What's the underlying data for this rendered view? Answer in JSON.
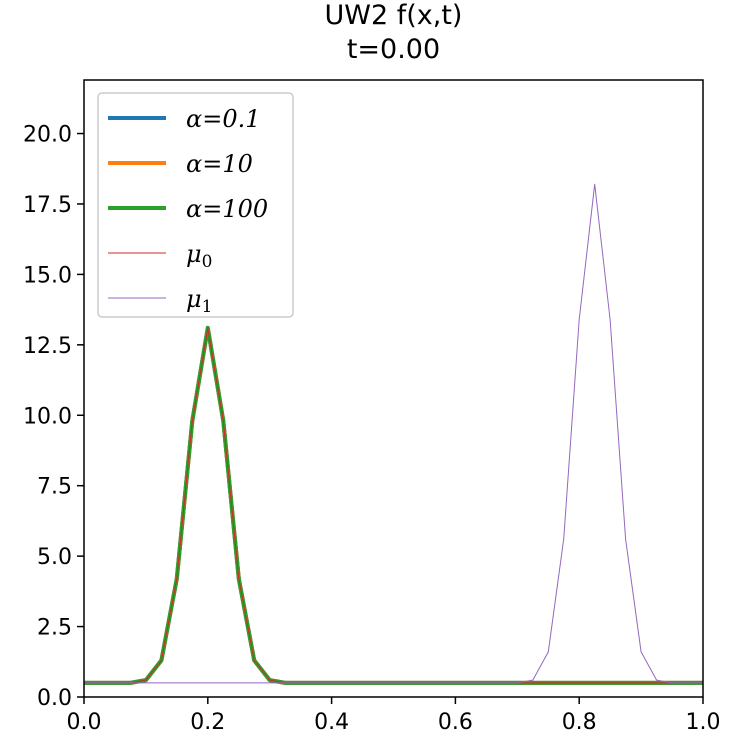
{
  "chart_data": {
    "type": "line",
    "title": "UW2 f(x,t)",
    "subtitle": "t=0.00",
    "xlim": [
      0.0,
      1.0
    ],
    "ylim": [
      0.0,
      21.9
    ],
    "xticks": [
      "0.0",
      "0.2",
      "0.4",
      "0.6",
      "0.8",
      "1.0"
    ],
    "yticks": [
      "0.0",
      "2.5",
      "5.0",
      "7.5",
      "10.0",
      "12.5",
      "15.0",
      "17.5",
      "20.0"
    ],
    "legend_position": "top-left",
    "grid": false,
    "x": [
      0.0,
      0.025,
      0.05,
      0.075,
      0.1,
      0.125,
      0.15,
      0.175,
      0.2,
      0.225,
      0.25,
      0.275,
      0.3,
      0.325,
      0.35,
      0.4,
      0.5,
      0.6,
      0.7,
      0.725,
      0.75,
      0.775,
      0.8,
      0.825,
      0.85,
      0.875,
      0.9,
      0.925,
      0.95,
      1.0
    ],
    "series": [
      {
        "name": "α=0.1",
        "color": "#1f77b4",
        "width": 4,
        "values": [
          0.5,
          0.5,
          0.5,
          0.5,
          0.6,
          1.3,
          4.2,
          9.8,
          13.1,
          9.8,
          4.2,
          1.3,
          0.6,
          0.5,
          0.5,
          0.5,
          0.5,
          0.5,
          0.5,
          0.5,
          0.5,
          0.5,
          0.5,
          0.5,
          0.5,
          0.5,
          0.5,
          0.5,
          0.5,
          0.5
        ]
      },
      {
        "name": "α=10",
        "color": "#ff7f0e",
        "width": 4,
        "values": [
          0.5,
          0.5,
          0.5,
          0.5,
          0.6,
          1.3,
          4.2,
          9.8,
          13.1,
          9.8,
          4.2,
          1.3,
          0.6,
          0.5,
          0.5,
          0.5,
          0.5,
          0.5,
          0.5,
          0.5,
          0.5,
          0.5,
          0.5,
          0.5,
          0.5,
          0.5,
          0.5,
          0.5,
          0.5,
          0.5
        ]
      },
      {
        "name": "α=100",
        "color": "#2ca02c",
        "width": 4,
        "values": [
          0.5,
          0.5,
          0.5,
          0.5,
          0.6,
          1.3,
          4.2,
          9.8,
          13.1,
          9.8,
          4.2,
          1.3,
          0.6,
          0.5,
          0.5,
          0.5,
          0.5,
          0.5,
          0.5,
          0.5,
          0.5,
          0.5,
          0.5,
          0.5,
          0.5,
          0.5,
          0.5,
          0.5,
          0.5,
          0.5
        ]
      },
      {
        "name": "μ0",
        "name_base": "μ",
        "name_sub": "0",
        "color": "#d62728",
        "width": 1,
        "values": [
          0.5,
          0.5,
          0.5,
          0.5,
          0.6,
          1.3,
          4.2,
          9.8,
          13.1,
          9.8,
          4.2,
          1.3,
          0.6,
          0.5,
          0.5,
          0.5,
          0.5,
          0.5,
          0.5,
          0.5,
          0.5,
          0.5,
          0.5,
          0.5,
          0.5,
          0.5,
          0.5,
          0.5,
          0.5,
          0.5
        ]
      },
      {
        "name": "μ1",
        "name_base": "μ",
        "name_sub": "1",
        "color": "#9467bd",
        "width": 1,
        "values": [
          0.5,
          0.5,
          0.5,
          0.5,
          0.5,
          0.5,
          0.5,
          0.5,
          0.5,
          0.5,
          0.5,
          0.5,
          0.5,
          0.5,
          0.5,
          0.5,
          0.5,
          0.5,
          0.5,
          0.6,
          1.6,
          5.6,
          13.4,
          18.2,
          13.4,
          5.6,
          1.6,
          0.6,
          0.5,
          0.5
        ]
      }
    ]
  }
}
